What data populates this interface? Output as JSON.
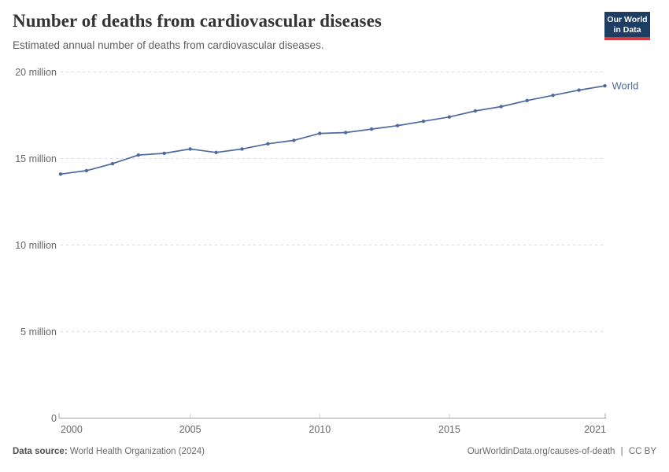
{
  "header": {
    "title": "Number of deaths from cardiovascular diseases",
    "subtitle": "Estimated annual number of deaths from cardiovascular diseases.",
    "logo": {
      "line1": "Our World",
      "line2": "in Data",
      "bg_color": "#1d3d63",
      "accent_color": "#d93a3f"
    }
  },
  "chart_data": {
    "type": "line",
    "title": "Number of deaths from cardiovascular diseases",
    "subtitle": "Estimated annual number of deaths from cardiovascular diseases.",
    "x": [
      2000,
      2001,
      2002,
      2003,
      2004,
      2005,
      2006,
      2007,
      2008,
      2009,
      2010,
      2011,
      2012,
      2013,
      2014,
      2015,
      2016,
      2017,
      2018,
      2019,
      2020,
      2021
    ],
    "series": [
      {
        "name": "World",
        "color": "#4c6a9c",
        "values": [
          14100000,
          14300000,
          14700000,
          15200000,
          15300000,
          15550000,
          15350000,
          15550000,
          15850000,
          16050000,
          16450000,
          16500000,
          16700000,
          16900000,
          17150000,
          17400000,
          17750000,
          18000000,
          18350000,
          18650000,
          18950000,
          19200000
        ]
      }
    ],
    "xlim": [
      2000,
      2021
    ],
    "ylim": [
      0,
      20000000
    ],
    "x_ticks": [
      2000,
      2005,
      2010,
      2015,
      2021
    ],
    "y_ticks": [
      {
        "value": 0,
        "label": "0"
      },
      {
        "value": 5000000,
        "label": "5 million"
      },
      {
        "value": 10000000,
        "label": "10 million"
      },
      {
        "value": 15000000,
        "label": "15 million"
      },
      {
        "value": 20000000,
        "label": "20 million"
      }
    ],
    "grid": "horizontal-dashed",
    "legend": "series-end-label"
  },
  "footer": {
    "datasource_label": "Data source:",
    "datasource_value": "World Health Organization (2024)",
    "link": "OurWorldinData.org/causes-of-death",
    "separator": "|",
    "license": "CC BY"
  }
}
